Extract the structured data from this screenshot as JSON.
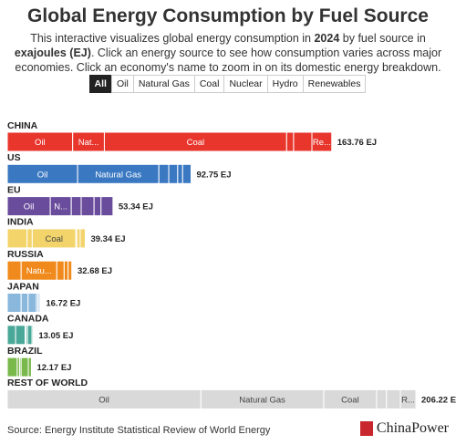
{
  "chart_data": {
    "type": "stacked-bar",
    "title": "Global Energy Consumption by Fuel Source",
    "subtitle": [
      "This interactive visualizes global energy consumption in ",
      "2024",
      " by fuel source in ",
      "exajoules (EJ)",
      ". Click an energy source to see how consumption varies across major economies. Click an economy's name to zoom in on its domestic energy breakdown."
    ],
    "filter_all": "All",
    "categories": [
      "CHINA",
      "US",
      "EU",
      "INDIA",
      "RUSSIA",
      "JAPAN",
      "CANADA",
      "BRAZIL",
      "REST OF WORLD"
    ],
    "colors": [
      "#e8362d",
      "#3a78c2",
      "#6a4c9c",
      "#f3d46b",
      "#f08a1c",
      "#8ab8dd",
      "#4aa898",
      "#79b84a",
      "#d9d9d9"
    ],
    "series": [
      {
        "name": "Oil",
        "values": [
          33,
          35.5,
          21.7,
          10,
          7,
          7,
          4.2,
          5,
          97.7
        ],
        "segment_labels": [
          "Oil",
          "Oil",
          "Oil",
          null,
          null,
          null,
          null,
          null,
          "Oil"
        ]
      },
      {
        "name": "Natural Gas",
        "values": [
          16,
          41,
          10.6,
          2.6,
          18,
          3.5,
          4.8,
          1.2,
          62
        ],
        "segment_labels": [
          "Nat...",
          "Natural Gas",
          "N...",
          null,
          "Natu...",
          null,
          null,
          null,
          "Natural Gas"
        ]
      },
      {
        "name": "Coal",
        "values": [
          92,
          5,
          5,
          22,
          3.7,
          4.2,
          0.4,
          0.7,
          26.7
        ],
        "segment_labels": [
          "Coal",
          null,
          null,
          "Coal",
          null,
          null,
          null,
          null,
          "Coal"
        ]
      },
      {
        "name": "Nuclear",
        "values": [
          3.5,
          4.5,
          6.5,
          0.5,
          2,
          0.8,
          0.8,
          0.1,
          5
        ],
        "segment_labels": [
          null,
          null,
          null,
          null,
          null,
          null,
          null,
          null,
          null
        ]
      },
      {
        "name": "Hydro",
        "values": [
          9.26,
          2.5,
          3.5,
          1.7,
          1.9,
          0.7,
          2.3,
          3.6,
          7
        ],
        "segment_labels": [
          null,
          null,
          null,
          null,
          null,
          null,
          null,
          null,
          null
        ]
      },
      {
        "name": "Renewables",
        "values": [
          10,
          4.25,
          6.04,
          2.54,
          0.08,
          0.52,
          0.55,
          1.57,
          7.82
        ],
        "segment_labels": [
          "Re...",
          null,
          null,
          null,
          null,
          null,
          null,
          null,
          "R..."
        ]
      }
    ],
    "totals": [
      163.76,
      92.75,
      53.34,
      39.34,
      32.68,
      16.72,
      13.05,
      12.17,
      206.22
    ],
    "total_labels": [
      "163.76 EJ",
      "92.75 EJ",
      "53.34 EJ",
      "39.34 EJ",
      "32.68 EJ",
      "16.72 EJ",
      "13.05 EJ",
      "12.17 EJ",
      "206.22 EJ"
    ],
    "source": "Source: Energy Institute Statistical Review of World Energy",
    "brand": "ChinaPower"
  }
}
